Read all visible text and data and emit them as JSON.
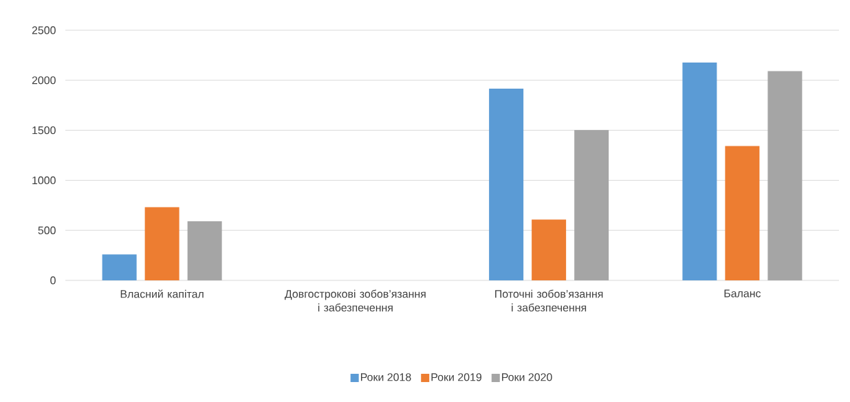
{
  "chart_data": {
    "type": "bar",
    "categories": [
      "Власний капітал",
      "Довгострокові зобов’язання і забезпечення",
      "Поточні зобов’язання і забезпечення",
      "Баланс"
    ],
    "series": [
      {
        "name": "Роки 2018",
        "color": "#5b9bd5",
        "values": [
          260,
          0,
          1916,
          2177
        ]
      },
      {
        "name": "Роки 2019",
        "color": "#ed7d31",
        "values": [
          731,
          0,
          608,
          1343
        ]
      },
      {
        "name": "Роки 2020",
        "color": "#a5a5a5",
        "values": [
          590,
          0,
          1502,
          2091
        ]
      }
    ],
    "ylim": [
      0,
      2500
    ],
    "yticks": [
      0,
      500,
      1000,
      1500,
      2000,
      2500
    ],
    "grid": "y",
    "legend": "bottom"
  }
}
